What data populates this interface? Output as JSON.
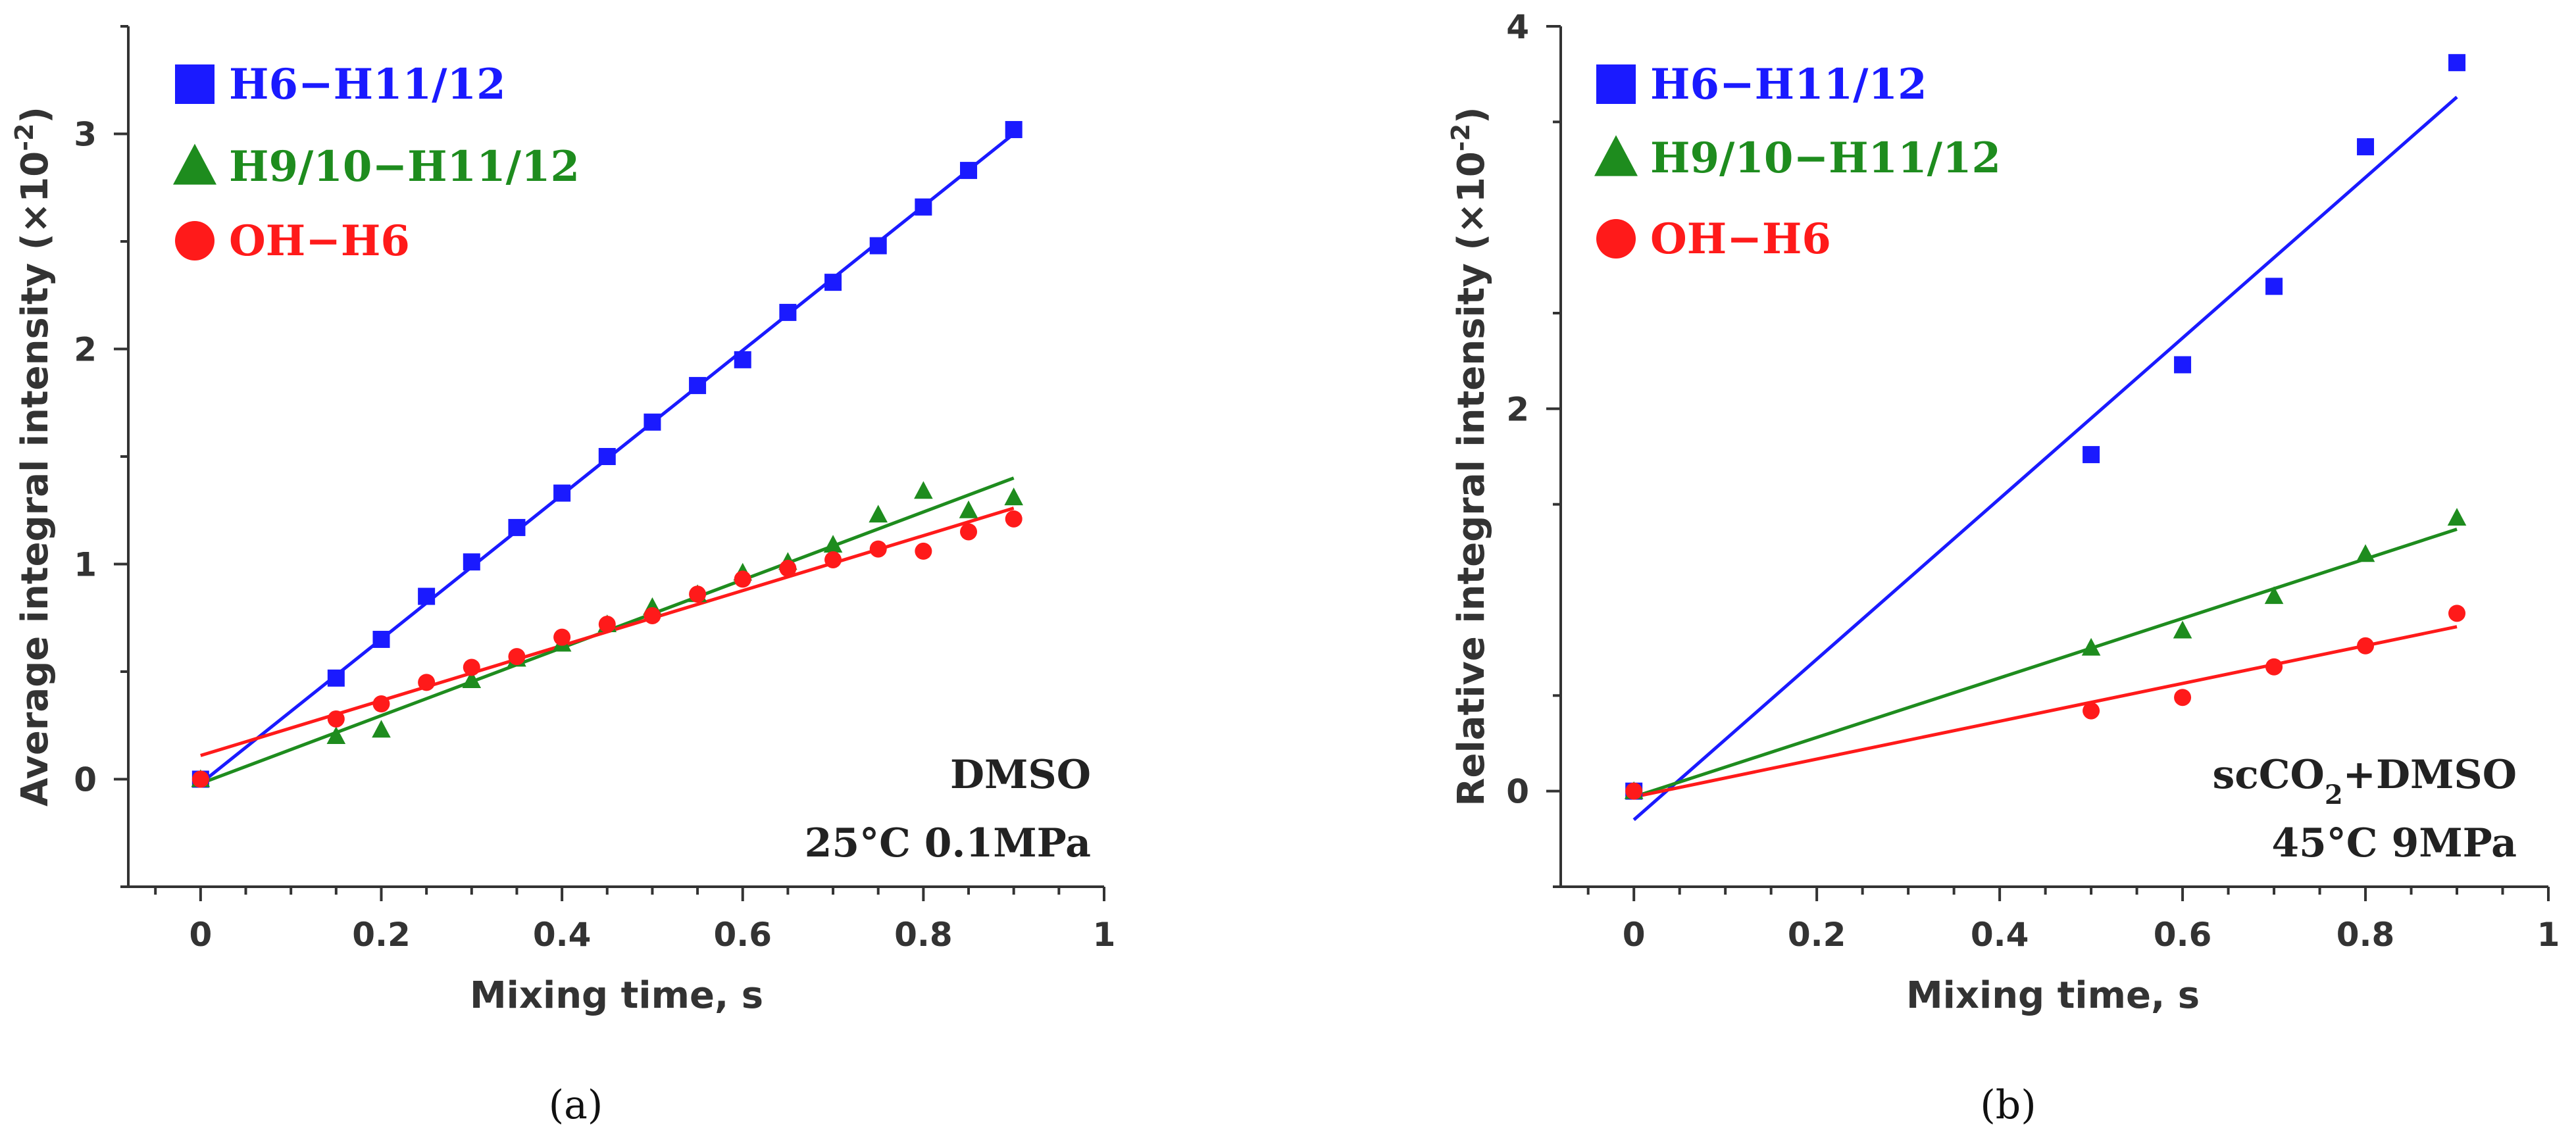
{
  "chart_data": [
    {
      "id": "a",
      "type": "scatter",
      "panel_label": "(a)",
      "xlabel": "Mixing time, s",
      "ylabel": "Average integral intensity (×10",
      "ylabel_exp": "-2",
      "ylabel_close": ")",
      "xlim": [
        -0.08,
        1.0
      ],
      "ylim": [
        -0.5,
        3.5
      ],
      "x_ticks": [
        0,
        0.2,
        0.4,
        0.6,
        0.8,
        1
      ],
      "x_tick_labels": [
        "0",
        "0.2",
        "0.4",
        "0.6",
        "0.8",
        "1"
      ],
      "y_ticks": [
        0,
        1,
        2,
        3
      ],
      "y_tick_labels": [
        "0",
        "1",
        "2",
        "3"
      ],
      "annotation_lines": [
        {
          "parts": [
            {
              "text": "DMSO"
            }
          ]
        },
        {
          "parts": [
            {
              "text": "25°C 0.1MPa"
            }
          ]
        }
      ],
      "series": [
        {
          "name": "H6−H11/12",
          "marker": "square",
          "color": "#1a1aff",
          "x": [
            0,
            0.15,
            0.2,
            0.25,
            0.3,
            0.35,
            0.4,
            0.45,
            0.5,
            0.55,
            0.6,
            0.65,
            0.7,
            0.75,
            0.8,
            0.85,
            0.9
          ],
          "y": [
            0.0,
            0.47,
            0.65,
            0.85,
            1.01,
            1.17,
            1.33,
            1.5,
            1.66,
            1.83,
            1.95,
            2.17,
            2.31,
            2.48,
            2.66,
            2.83,
            3.02
          ],
          "fit": [
            0.0,
            -0.02,
            0.9,
            3.0
          ]
        },
        {
          "name": "H9/10−H11/12",
          "marker": "triangle",
          "color": "#1e8c1e",
          "x": [
            0,
            0.15,
            0.2,
            0.3,
            0.35,
            0.4,
            0.45,
            0.5,
            0.55,
            0.6,
            0.65,
            0.7,
            0.75,
            0.8,
            0.85,
            0.9
          ],
          "y": [
            0.0,
            0.2,
            0.23,
            0.46,
            0.56,
            0.63,
            0.72,
            0.8,
            0.86,
            0.96,
            1.01,
            1.09,
            1.23,
            1.34,
            1.25,
            1.31
          ],
          "fit": [
            0.0,
            -0.02,
            0.9,
            1.4
          ]
        },
        {
          "name": "OH−H6",
          "marker": "circle",
          "color": "#ff1a1a",
          "x": [
            0,
            0.15,
            0.2,
            0.25,
            0.3,
            0.35,
            0.4,
            0.45,
            0.5,
            0.55,
            0.6,
            0.65,
            0.7,
            0.75,
            0.8,
            0.85,
            0.9
          ],
          "y": [
            0.0,
            0.28,
            0.35,
            0.45,
            0.52,
            0.57,
            0.66,
            0.72,
            0.76,
            0.86,
            0.93,
            0.98,
            1.02,
            1.07,
            1.06,
            1.15,
            1.21
          ],
          "fit": [
            0.0,
            0.11,
            0.9,
            1.26
          ]
        }
      ]
    },
    {
      "id": "b",
      "type": "scatter",
      "panel_label": "(b)",
      "xlabel": "Mixing time, s",
      "ylabel": "Relative integral intensity (×10",
      "ylabel_exp": "-2",
      "ylabel_close": ")",
      "xlim": [
        -0.08,
        1.0
      ],
      "ylim": [
        -0.5,
        4.0
      ],
      "x_ticks": [
        0,
        0.2,
        0.4,
        0.6,
        0.8,
        1
      ],
      "x_tick_labels": [
        "0",
        "0.2",
        "0.4",
        "0.6",
        "0.8",
        "1"
      ],
      "y_ticks": [
        0,
        2,
        4
      ],
      "y_tick_labels": [
        "0",
        "2",
        "4"
      ],
      "annotation_lines": [
        {
          "parts": [
            {
              "text": "scCO"
            },
            {
              "text": "2",
              "sub": true
            },
            {
              "text": "+DMSO"
            }
          ]
        },
        {
          "parts": [
            {
              "text": "45°C 9MPa"
            }
          ]
        }
      ],
      "series": [
        {
          "name": "H6−H11/12",
          "marker": "square",
          "color": "#1a1aff",
          "x": [
            0,
            0.5,
            0.6,
            0.7,
            0.8,
            0.9
          ],
          "y": [
            0.0,
            1.76,
            2.23,
            2.64,
            3.37,
            3.81
          ],
          "fit": [
            0.0,
            -0.15,
            0.9,
            3.63
          ]
        },
        {
          "name": "H9/10−H11/12",
          "marker": "triangle",
          "color": "#1e8c1e",
          "x": [
            0,
            0.5,
            0.6,
            0.7,
            0.8,
            0.9
          ],
          "y": [
            0.0,
            0.75,
            0.84,
            1.02,
            1.24,
            1.43
          ],
          "fit": [
            0.0,
            -0.03,
            0.9,
            1.37
          ]
        },
        {
          "name": "OH−H6",
          "marker": "circle",
          "color": "#ff1a1a",
          "x": [
            0,
            0.5,
            0.6,
            0.7,
            0.8,
            0.9
          ],
          "y": [
            0.0,
            0.42,
            0.49,
            0.65,
            0.76,
            0.93
          ],
          "fit": [
            0.0,
            -0.03,
            0.9,
            0.86
          ]
        }
      ]
    }
  ]
}
